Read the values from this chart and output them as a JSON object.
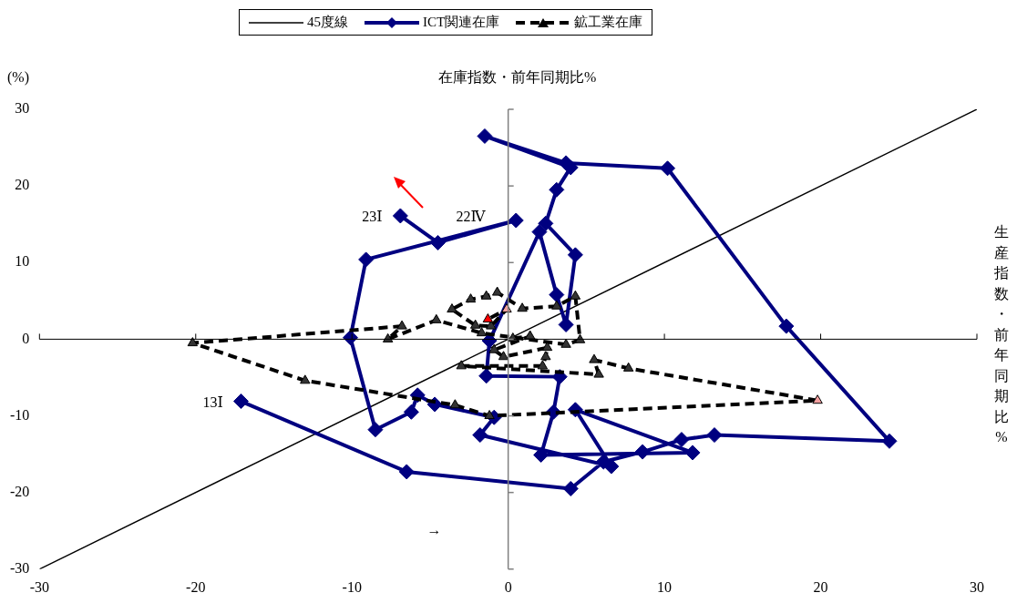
{
  "chart_data": {
    "type": "line",
    "xlabel": "生産指数・前年同期比%",
    "ylabel": "在庫指数・前年同期比%",
    "xlim": [
      -30,
      30
    ],
    "xticks": [
      -30,
      -20,
      -10,
      0,
      10,
      20,
      30
    ],
    "ylim": [
      -30,
      30
    ],
    "yticks": [
      -30,
      -20,
      -10,
      0,
      10,
      20,
      30
    ],
    "grid": false,
    "legend": "top",
    "annotations": [
      "(%)",
      {
        "text": "13Ⅰ",
        "x": -17.1,
        "y": -8.1
      },
      {
        "text": "23Ⅰ",
        "x": -6.9,
        "y": 16.1
      },
      {
        "text": "22Ⅳ",
        "x": -4.5,
        "y": 12.6
      },
      "→"
    ],
    "series": [
      {
        "name": "45度線",
        "type": "line",
        "color": "#000000",
        "marker": "none",
        "line_style": "solid",
        "x": [
          -30,
          30
        ],
        "values": [
          -30,
          30
        ]
      },
      {
        "name": "ICT関連在庫",
        "type": "line",
        "color": "#000080",
        "marker": "diamond",
        "line_style": "solid",
        "x": [
          -17.1,
          -6.5,
          4.0,
          6.1,
          8.6,
          11.1,
          13.2,
          24.4,
          17.8,
          10.2,
          3.7,
          -1.5,
          4.0,
          3.1,
          2.4,
          4.3,
          3.7,
          3.1,
          2.0,
          -1.2,
          -1.4,
          3.3,
          2.9,
          2.1,
          11.8,
          4.3,
          6.6,
          -1.8,
          -0.9,
          -4.7,
          -5.8,
          -6.2,
          -8.5,
          -10.1,
          -9.1,
          0.5,
          -4.5,
          -6.9
        ],
        "values": [
          -8.1,
          -17.3,
          -19.5,
          -16.0,
          -14.7,
          -13.1,
          -12.5,
          -13.3,
          1.7,
          22.3,
          23.0,
          26.5,
          22.4,
          19.5,
          15.1,
          11.0,
          1.9,
          5.8,
          14.0,
          -0.2,
          -4.8,
          -4.9,
          -9.5,
          -15.1,
          -14.8,
          -9.2,
          -16.6,
          -12.5,
          -10.2,
          -8.5,
          -7.3,
          -9.5,
          -11.8,
          0.2,
          10.4,
          15.5,
          12.6,
          16.1
        ]
      },
      {
        "name": "鉱工業在庫",
        "type": "line",
        "color": "#000000",
        "marker": "triangle",
        "line_style": "dashed",
        "x": [
          0.3,
          1.4,
          -0.9,
          -0.3,
          2.5,
          2.4,
          2.2,
          -3.0,
          5.8,
          5.5,
          7.7,
          19.8,
          -1.2,
          -3.4,
          -13.0,
          -20.2,
          -6.8,
          -7.7,
          -4.6,
          -1.7,
          3.7,
          4.6,
          4.3,
          3.1,
          0.9,
          -0.7,
          -1.4,
          -2.4,
          -3.6,
          -2.1,
          -1.1,
          -0.1,
          -1.3
        ],
        "values": [
          0.1,
          0.4,
          -1.4,
          -2.3,
          -1.1,
          -2.3,
          -3.5,
          -3.5,
          -4.6,
          -2.7,
          -3.8,
          -8.0,
          -10.0,
          -8.6,
          -5.4,
          -0.5,
          1.7,
          0.0,
          2.5,
          0.8,
          -0.7,
          -0.1,
          5.6,
          4.3,
          4.0,
          6.1,
          5.6,
          5.2,
          3.9,
          1.8,
          1.7,
          3.9,
          2.6
        ],
        "colors": [
          "#333333",
          "#333333",
          "#333333",
          "#333333",
          "#333333",
          "#333333",
          "#333333",
          "#333333",
          "#333333",
          "#333333",
          "#333333",
          "#f4a0a0",
          "#333333",
          "#333333",
          "#333333",
          "#333333",
          "#333333",
          "#333333",
          "#333333",
          "#333333",
          "#333333",
          "#333333",
          "#333333",
          "#333333",
          "#333333",
          "#333333",
          "#333333",
          "#333333",
          "#333333",
          "#333333",
          "#333333",
          "#f4a0a0",
          "#ff0000"
        ]
      }
    ]
  }
}
